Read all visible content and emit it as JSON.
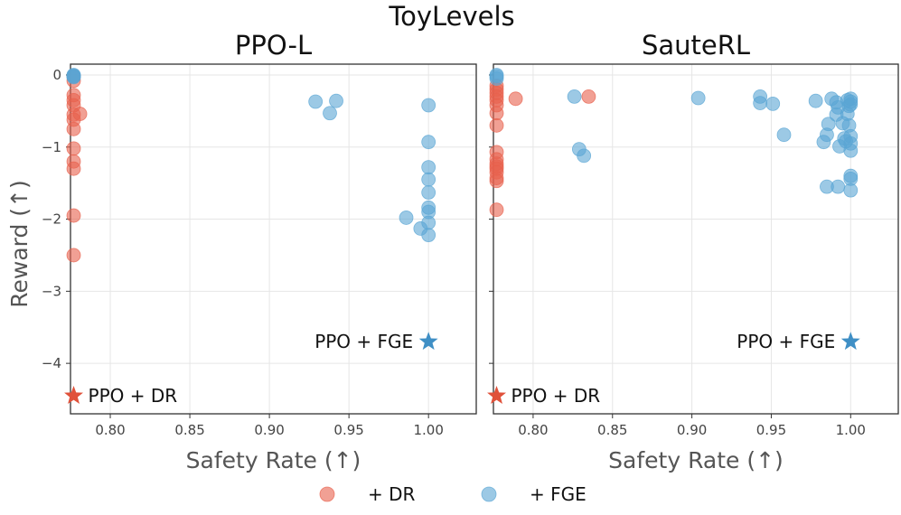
{
  "chart_data": {
    "type": "scatter",
    "suptitle": "ToyLevels",
    "ylabel": "Reward (↑)",
    "xlabel": "Safety Rate (↑)",
    "xlim": [
      0.775,
      1.03
    ],
    "ylim": [
      -4.7,
      0.15
    ],
    "xticks": [
      0.8,
      0.85,
      0.9,
      0.95,
      1.0
    ],
    "xtick_labels": [
      "0.80",
      "0.85",
      "0.90",
      "0.95",
      "1.00"
    ],
    "yticks": [
      0,
      -1,
      -2,
      -3,
      -4
    ],
    "ytick_labels": [
      "0",
      "−1",
      "−2",
      "−3",
      "−4"
    ],
    "colors": {
      "dr": "#e8604c",
      "fge": "#5aa5d4",
      "dr_star": "#e0513a",
      "fge_star": "#3f8fc5",
      "grid": "#e6e6e6",
      "axis": "#333333",
      "label": "#555555"
    },
    "legend": [
      {
        "name": "+ DR",
        "color": "#e8604c"
      },
      {
        "name": "+ FGE",
        "color": "#5aa5d4"
      }
    ],
    "panels": [
      {
        "title": "PPO-L",
        "series": [
          {
            "name": "+ DR",
            "points": [
              [
                0.777,
                -0.02
              ],
              [
                0.777,
                -0.08
              ],
              [
                0.777,
                -0.28
              ],
              [
                0.777,
                -0.35
              ],
              [
                0.777,
                -0.42
              ],
              [
                0.777,
                -0.55
              ],
              [
                0.777,
                -0.62
              ],
              [
                0.777,
                -0.75
              ],
              [
                0.781,
                -0.54
              ],
              [
                0.777,
                -1.02
              ],
              [
                0.777,
                -1.2
              ],
              [
                0.777,
                -1.3
              ],
              [
                0.777,
                -1.95
              ],
              [
                0.777,
                -2.5
              ]
            ]
          },
          {
            "name": "+ FGE",
            "points": [
              [
                0.777,
                0.0
              ],
              [
                0.777,
                -0.01
              ],
              [
                0.777,
                -0.02
              ],
              [
                0.777,
                -0.03
              ],
              [
                0.929,
                -0.37
              ],
              [
                0.938,
                -0.53
              ],
              [
                0.942,
                -0.36
              ],
              [
                1.0,
                -0.42
              ],
              [
                1.0,
                -0.93
              ],
              [
                1.0,
                -1.28
              ],
              [
                1.0,
                -1.45
              ],
              [
                1.0,
                -1.63
              ],
              [
                1.0,
                -1.84
              ],
              [
                1.0,
                -1.9
              ],
              [
                0.986,
                -1.98
              ],
              [
                1.0,
                -2.05
              ],
              [
                0.995,
                -2.13
              ],
              [
                1.0,
                -2.22
              ]
            ]
          }
        ],
        "annotations": [
          {
            "label": "PPO + FGE",
            "x": 1.0,
            "y": -3.7,
            "series": "+ FGE"
          },
          {
            "label": "PPO + DR",
            "x": 0.777,
            "y": -4.45,
            "series": "+ DR"
          }
        ]
      },
      {
        "title": "SauteRL",
        "series": [
          {
            "name": "+ DR",
            "points": [
              [
                0.777,
                -0.15
              ],
              [
                0.777,
                -0.2
              ],
              [
                0.777,
                -0.25
              ],
              [
                0.777,
                -0.3
              ],
              [
                0.777,
                -0.35
              ],
              [
                0.777,
                -0.42
              ],
              [
                0.777,
                -0.53
              ],
              [
                0.777,
                -0.7
              ],
              [
                0.789,
                -0.33
              ],
              [
                0.835,
                -0.3
              ],
              [
                0.777,
                -1.07
              ],
              [
                0.777,
                -1.17
              ],
              [
                0.777,
                -1.23
              ],
              [
                0.777,
                -1.27
              ],
              [
                0.777,
                -1.3
              ],
              [
                0.777,
                -1.35
              ],
              [
                0.777,
                -1.43
              ],
              [
                0.777,
                -1.47
              ],
              [
                0.777,
                -1.87
              ]
            ]
          },
          {
            "name": "+ FGE",
            "points": [
              [
                0.777,
                0.0
              ],
              [
                0.777,
                -0.02
              ],
              [
                0.777,
                -0.05
              ],
              [
                0.826,
                -0.3
              ],
              [
                0.829,
                -1.03
              ],
              [
                0.832,
                -1.12
              ],
              [
                0.904,
                -0.32
              ],
              [
                0.943,
                -0.3
              ],
              [
                0.943,
                -0.39
              ],
              [
                0.951,
                -0.4
              ],
              [
                0.958,
                -0.83
              ],
              [
                0.978,
                -0.36
              ],
              [
                0.983,
                -0.93
              ],
              [
                0.985,
                -0.83
              ],
              [
                0.986,
                -0.68
              ],
              [
                0.988,
                -0.33
              ],
              [
                0.991,
                -0.38
              ],
              [
                0.991,
                -0.55
              ],
              [
                0.992,
                -0.45
              ],
              [
                0.993,
                -0.99
              ],
              [
                0.995,
                -0.67
              ],
              [
                0.996,
                -0.88
              ],
              [
                0.997,
                -0.92
              ],
              [
                0.998,
                -0.35
              ],
              [
                0.998,
                -0.54
              ],
              [
                0.999,
                -0.7
              ],
              [
                0.999,
                -0.43
              ],
              [
                1.0,
                -0.33
              ],
              [
                1.0,
                -0.37
              ],
              [
                1.0,
                -0.41
              ],
              [
                1.0,
                -0.85
              ],
              [
                1.0,
                -0.95
              ],
              [
                1.0,
                -1.05
              ],
              [
                1.0,
                -1.4
              ],
              [
                1.0,
                -1.44
              ],
              [
                1.0,
                -1.6
              ],
              [
                0.985,
                -1.55
              ],
              [
                0.992,
                -1.55
              ]
            ]
          }
        ],
        "annotations": [
          {
            "label": "PPO + FGE",
            "x": 1.0,
            "y": -3.7,
            "series": "+ FGE"
          },
          {
            "label": "PPO + DR",
            "x": 0.777,
            "y": -4.45,
            "series": "+ DR"
          }
        ]
      }
    ]
  }
}
